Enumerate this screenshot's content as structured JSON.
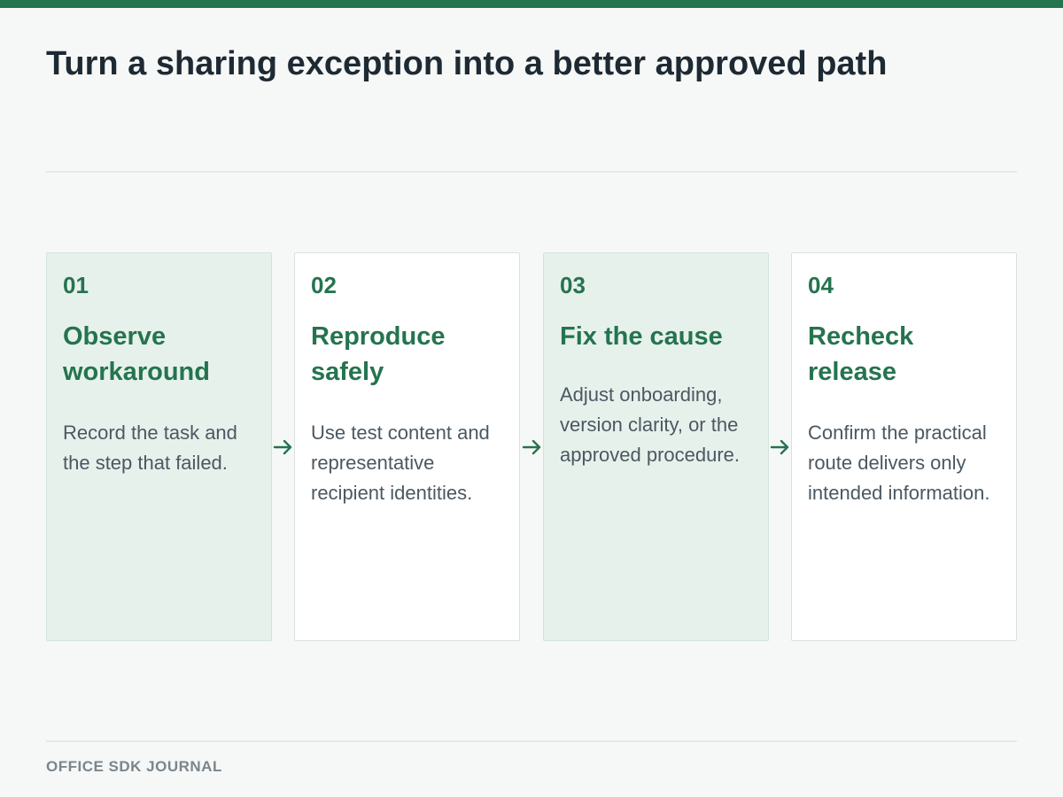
{
  "header": {
    "title": "Turn a sharing exception into a better approved path"
  },
  "steps": [
    {
      "number": "01",
      "title": "Observe workaround",
      "description": "Record the task and the step that failed."
    },
    {
      "number": "02",
      "title": "Reproduce safely",
      "description": "Use test content and representative recipient identities."
    },
    {
      "number": "03",
      "title": "Fix the cause",
      "description": "Adjust onboarding, version clarity, or the approved procedure."
    },
    {
      "number": "04",
      "title": "Recheck release",
      "description": "Confirm the practical route delivers only intended information."
    }
  ],
  "footer": {
    "label": "OFFICE SDK JOURNAL"
  },
  "colors": {
    "accent": "#24744f",
    "tinted_card": "#e7f1ec",
    "plain_card": "#ffffff",
    "background": "#f6f8f7"
  }
}
